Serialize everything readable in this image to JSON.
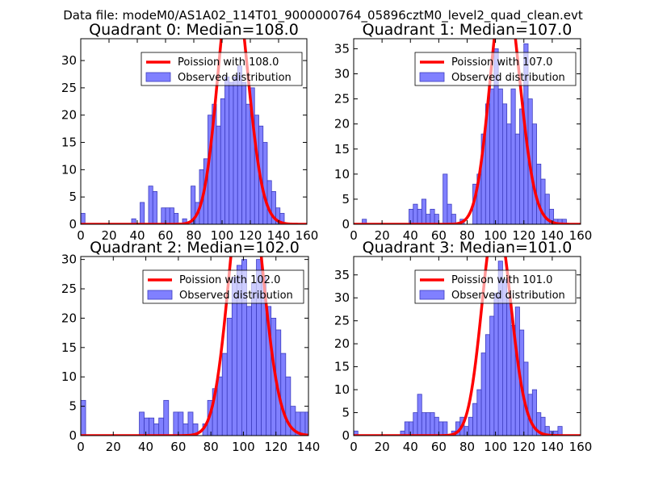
{
  "figure": {
    "suptitle": "Data file: modeM0/AS1A02_114T01_9000000764_05896cztM0_level2_quad_clean.evt"
  },
  "colors": {
    "bar_fill": "#8080ff",
    "bar_edge": "#3d3dbf",
    "poisson_line": "#ff0000",
    "axes": "#000000"
  },
  "chart_data": [
    {
      "type": "bar",
      "title": "Quadrant 0: Median=108.0",
      "xlim": [
        0,
        160
      ],
      "ylim": [
        0,
        34
      ],
      "xticks": [
        0,
        20,
        40,
        60,
        80,
        100,
        120,
        140,
        160
      ],
      "yticks": [
        0,
        5,
        10,
        15,
        20,
        25,
        30
      ],
      "bin_width": 3,
      "bars": [
        [
          0,
          2
        ],
        [
          36,
          1
        ],
        [
          42,
          4
        ],
        [
          48,
          7
        ],
        [
          51,
          6
        ],
        [
          57,
          3
        ],
        [
          60,
          3
        ],
        [
          63,
          3
        ],
        [
          66,
          2
        ],
        [
          72,
          1
        ],
        [
          78,
          7
        ],
        [
          81,
          4
        ],
        [
          84,
          10
        ],
        [
          87,
          12
        ],
        [
          90,
          20
        ],
        [
          93,
          22
        ],
        [
          96,
          18
        ],
        [
          99,
          23
        ],
        [
          102,
          27
        ],
        [
          105,
          26
        ],
        [
          108,
          27
        ],
        [
          111,
          29
        ],
        [
          114,
          26
        ],
        [
          117,
          22
        ],
        [
          120,
          25
        ],
        [
          123,
          20
        ],
        [
          126,
          18
        ],
        [
          129,
          15
        ],
        [
          132,
          8
        ],
        [
          135,
          6
        ],
        [
          138,
          3
        ],
        [
          141,
          2
        ]
      ],
      "poisson_mean": 108.0,
      "legend": [
        "Poission with 108.0",
        "Observed distribution"
      ]
    },
    {
      "type": "bar",
      "title": "Quadrant 1: Median=107.0",
      "xlim": [
        0,
        160
      ],
      "ylim": [
        0,
        37
      ],
      "xticks": [
        0,
        20,
        40,
        60,
        80,
        100,
        120,
        140,
        160
      ],
      "yticks": [
        0,
        5,
        10,
        15,
        20,
        25,
        30,
        35
      ],
      "bin_width": 3,
      "bars": [
        [
          6,
          1
        ],
        [
          39,
          3
        ],
        [
          42,
          4
        ],
        [
          45,
          3
        ],
        [
          48,
          5
        ],
        [
          51,
          2
        ],
        [
          54,
          3
        ],
        [
          57,
          2
        ],
        [
          63,
          10
        ],
        [
          66,
          4
        ],
        [
          69,
          2
        ],
        [
          75,
          1
        ],
        [
          84,
          8
        ],
        [
          87,
          10
        ],
        [
          90,
          18
        ],
        [
          93,
          24
        ],
        [
          96,
          27
        ],
        [
          99,
          35
        ],
        [
          102,
          27
        ],
        [
          105,
          24
        ],
        [
          108,
          20
        ],
        [
          111,
          27
        ],
        [
          114,
          18
        ],
        [
          117,
          23
        ],
        [
          120,
          36
        ],
        [
          123,
          25
        ],
        [
          126,
          20
        ],
        [
          129,
          12
        ],
        [
          132,
          9
        ],
        [
          135,
          6
        ],
        [
          138,
          3
        ],
        [
          141,
          1
        ],
        [
          144,
          1
        ],
        [
          147,
          1
        ]
      ],
      "poisson_mean": 107.0,
      "legend": [
        "Poission with 107.0",
        "Observed distribution"
      ]
    },
    {
      "type": "bar",
      "title": "Quadrant 2: Median=102.0",
      "xlim": [
        0,
        140
      ],
      "ylim": [
        0,
        30.5
      ],
      "xticks": [
        0,
        20,
        40,
        60,
        80,
        100,
        120,
        140
      ],
      "yticks": [
        0,
        5,
        10,
        15,
        20,
        25,
        30
      ],
      "bin_width": 3,
      "bars": [
        [
          0,
          6
        ],
        [
          36,
          4
        ],
        [
          39,
          3
        ],
        [
          42,
          3
        ],
        [
          45,
          2
        ],
        [
          48,
          3
        ],
        [
          51,
          6
        ],
        [
          57,
          4
        ],
        [
          60,
          4
        ],
        [
          63,
          2
        ],
        [
          66,
          4
        ],
        [
          69,
          2
        ],
        [
          75,
          2
        ],
        [
          78,
          6
        ],
        [
          81,
          8
        ],
        [
          84,
          10
        ],
        [
          87,
          14
        ],
        [
          90,
          20
        ],
        [
          93,
          27
        ],
        [
          96,
          29
        ],
        [
          99,
          30
        ],
        [
          102,
          22
        ],
        [
          105,
          26
        ],
        [
          108,
          30
        ],
        [
          111,
          27
        ],
        [
          114,
          22
        ],
        [
          117,
          20
        ],
        [
          120,
          18
        ],
        [
          123,
          14
        ],
        [
          126,
          10
        ],
        [
          129,
          5
        ],
        [
          132,
          4
        ],
        [
          135,
          4
        ],
        [
          138,
          4
        ]
      ],
      "poisson_mean": 102.0,
      "legend": [
        "Poission with 102.0",
        "Observed distribution"
      ]
    },
    {
      "type": "bar",
      "title": "Quadrant 3: Median=101.0",
      "xlim": [
        0,
        160
      ],
      "ylim": [
        0,
        39
      ],
      "xticks": [
        0,
        20,
        40,
        60,
        80,
        100,
        120,
        140,
        160
      ],
      "yticks": [
        0,
        5,
        10,
        15,
        20,
        25,
        30,
        35
      ],
      "bin_width": 3,
      "bars": [
        [
          0,
          1
        ],
        [
          33,
          1
        ],
        [
          36,
          3
        ],
        [
          39,
          3
        ],
        [
          42,
          5
        ],
        [
          45,
          9
        ],
        [
          48,
          5
        ],
        [
          51,
          5
        ],
        [
          54,
          5
        ],
        [
          57,
          4
        ],
        [
          60,
          3
        ],
        [
          63,
          3
        ],
        [
          69,
          1
        ],
        [
          72,
          3
        ],
        [
          75,
          4
        ],
        [
          78,
          2
        ],
        [
          81,
          4
        ],
        [
          84,
          7
        ],
        [
          87,
          10
        ],
        [
          90,
          18
        ],
        [
          93,
          22
        ],
        [
          96,
          26
        ],
        [
          99,
          31
        ],
        [
          102,
          38
        ],
        [
          105,
          34
        ],
        [
          108,
          30
        ],
        [
          111,
          24
        ],
        [
          114,
          28
        ],
        [
          117,
          23
        ],
        [
          120,
          16
        ],
        [
          123,
          9
        ],
        [
          126,
          10
        ],
        [
          129,
          5
        ],
        [
          132,
          4
        ],
        [
          135,
          2
        ],
        [
          138,
          1
        ],
        [
          141,
          1
        ],
        [
          144,
          2
        ]
      ],
      "poisson_mean": 101.0,
      "legend": [
        "Poission with 101.0",
        "Observed distribution"
      ]
    }
  ]
}
